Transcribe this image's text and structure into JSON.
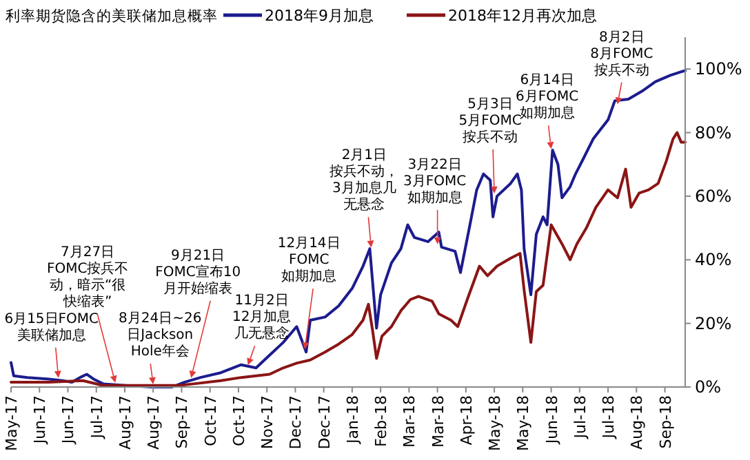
{
  "chart_data": {
    "type": "line",
    "title": "利率期货隐含的美联储加息概率",
    "legend": "top",
    "grid": false,
    "marker": "none",
    "line_style": "solid",
    "xlim": [
      "2017-05-11",
      "2018-09-21"
    ],
    "xticks": [
      {
        "value": "2017-05-11",
        "label": "May-17"
      },
      {
        "value": "2017-06-01",
        "label": "Jun-17"
      },
      {
        "value": "2017-06-22",
        "label": "Jun-17"
      },
      {
        "value": "2017-07-13",
        "label": "Jul-17"
      },
      {
        "value": "2017-08-03",
        "label": "Aug-17"
      },
      {
        "value": "2017-08-24",
        "label": "Aug-17"
      },
      {
        "value": "2017-09-14",
        "label": "Sep-17"
      },
      {
        "value": "2017-10-05",
        "label": "Oct-17"
      },
      {
        "value": "2017-10-26",
        "label": "Oct-17"
      },
      {
        "value": "2017-11-16",
        "label": "Nov-17"
      },
      {
        "value": "2017-12-07",
        "label": "Dec-17"
      },
      {
        "value": "2017-12-28",
        "label": "Dec-17"
      },
      {
        "value": "2018-01-18",
        "label": "Jan-18"
      },
      {
        "value": "2018-02-08",
        "label": "Feb-18"
      },
      {
        "value": "2018-03-01",
        "label": "Mar-18"
      },
      {
        "value": "2018-03-22",
        "label": "Mar-18"
      },
      {
        "value": "2018-04-12",
        "label": "Apr-18"
      },
      {
        "value": "2018-05-03",
        "label": "May-18"
      },
      {
        "value": "2018-05-24",
        "label": "May-18"
      },
      {
        "value": "2018-06-14",
        "label": "Jun-18"
      },
      {
        "value": "2018-07-05",
        "label": "Jul-18"
      },
      {
        "value": "2018-07-26",
        "label": "Jul-18"
      },
      {
        "value": "2018-08-16",
        "label": "Aug-18"
      },
      {
        "value": "2018-09-06",
        "label": "Sep-18"
      }
    ],
    "ylim": [
      0,
      110
    ],
    "yticks": [
      {
        "value": 0,
        "label": "0%"
      },
      {
        "value": 20,
        "label": "20%"
      },
      {
        "value": 40,
        "label": "40%"
      },
      {
        "value": 60,
        "label": "60%"
      },
      {
        "value": 80,
        "label": "80%"
      },
      {
        "value": 100,
        "label": "100%"
      }
    ],
    "series": [
      {
        "name": "2018年9月加息",
        "color": "#1c1c8e",
        "x": [
          "2017-05-11",
          "2017-05-13",
          "2017-05-23",
          "2017-06-08",
          "2017-06-18",
          "2017-06-25",
          "2017-07-01",
          "2017-07-06",
          "2017-07-11",
          "2017-07-18",
          "2017-08-03",
          "2017-08-23",
          "2017-09-07",
          "2017-09-16",
          "2017-09-28",
          "2017-10-13",
          "2017-10-28",
          "2017-11-08",
          "2017-11-18",
          "2017-11-28",
          "2017-12-08",
          "2017-12-15",
          "2017-12-18",
          "2017-12-29",
          "2018-01-08",
          "2018-01-18",
          "2018-01-26",
          "2018-01-31",
          "2018-02-05",
          "2018-02-08",
          "2018-02-16",
          "2018-02-23",
          "2018-02-28",
          "2018-03-05",
          "2018-03-15",
          "2018-03-23",
          "2018-03-25",
          "2018-04-04",
          "2018-04-08",
          "2018-04-15",
          "2018-04-20",
          "2018-04-25",
          "2018-04-30",
          "2018-05-02",
          "2018-05-05",
          "2018-05-15",
          "2018-05-20",
          "2018-05-23",
          "2018-05-25",
          "2018-05-30",
          "2018-06-03",
          "2018-06-08",
          "2018-06-11",
          "2018-06-15",
          "2018-06-19",
          "2018-06-22",
          "2018-06-28",
          "2018-07-02",
          "2018-07-08",
          "2018-07-15",
          "2018-07-26",
          "2018-07-31",
          "2018-08-10",
          "2018-08-20",
          "2018-08-30",
          "2018-09-10",
          "2018-09-17",
          "2018-09-21"
        ],
        "values": [
          7.7,
          3.5,
          3,
          2.5,
          2,
          1.5,
          3,
          4,
          2.5,
          1,
          0.5,
          0,
          0,
          1.5,
          3,
          4.5,
          7,
          6,
          10,
          14,
          19,
          11,
          21,
          22,
          25.5,
          31,
          38,
          43.5,
          18.5,
          29,
          39,
          43.5,
          51,
          47,
          45.7,
          48.7,
          44,
          42.7,
          36,
          51,
          62,
          67,
          65,
          53.5,
          60,
          64,
          67,
          62,
          43.5,
          29,
          48,
          53.5,
          51,
          74.5,
          70,
          59.5,
          63,
          67,
          72,
          78,
          84,
          90,
          90.5,
          93,
          96,
          98,
          99,
          99.5
        ]
      },
      {
        "name": "2018年12月再次加息",
        "color": "#8b1515",
        "x": [
          "2017-05-11",
          "2017-06-08",
          "2017-07-03",
          "2017-07-18",
          "2017-09-12",
          "2017-09-23",
          "2017-10-13",
          "2017-10-28",
          "2017-11-18",
          "2017-11-28",
          "2017-12-08",
          "2017-12-18",
          "2017-12-29",
          "2018-01-08",
          "2018-01-18",
          "2018-01-26",
          "2018-01-30",
          "2018-02-02",
          "2018-02-05",
          "2018-02-09",
          "2018-02-16",
          "2018-02-23",
          "2018-03-02",
          "2018-03-08",
          "2018-03-18",
          "2018-03-23",
          "2018-04-01",
          "2018-04-06",
          "2018-04-13",
          "2018-04-22",
          "2018-04-28",
          "2018-05-05",
          "2018-05-15",
          "2018-05-22",
          "2018-05-25",
          "2018-05-30",
          "2018-06-03",
          "2018-06-08",
          "2018-06-14",
          "2018-06-22",
          "2018-06-28",
          "2018-07-03",
          "2018-07-10",
          "2018-07-17",
          "2018-07-26",
          "2018-08-02",
          "2018-08-08",
          "2018-08-12",
          "2018-08-18",
          "2018-08-25",
          "2018-09-01",
          "2018-09-07",
          "2018-09-12",
          "2018-09-15",
          "2018-09-18",
          "2018-09-21"
        ],
        "values": [
          1.5,
          1.5,
          2,
          0.5,
          0.5,
          1,
          2,
          3,
          4,
          6,
          7.5,
          8.5,
          11,
          13.5,
          16.5,
          21,
          26,
          18,
          9,
          16,
          19,
          24,
          27.5,
          28.5,
          27,
          23,
          21,
          19,
          27.5,
          38,
          35,
          38,
          40.5,
          42,
          30.5,
          14,
          30,
          32,
          51,
          45,
          40,
          45,
          50,
          56.5,
          62,
          59.5,
          68.5,
          56.5,
          61,
          62,
          64,
          71,
          78,
          80,
          77,
          77
        ]
      }
    ],
    "annotations": [
      {
        "text": "6月15日FOMC美联储加息",
        "x": "2017-06-15",
        "y": 2
      },
      {
        "text": "7月27日FOMC按兵不动，暗示“很快缩表”",
        "x": "2017-07-27",
        "y": 0.5
      },
      {
        "text": "8月24日~26日Jackson Hole年会",
        "x": "2017-08-24",
        "y": 0
      },
      {
        "text": "9月21日FOMC宣布10月开始缩表",
        "x": "2017-09-21",
        "y": 2
      },
      {
        "text": "11月2日12月加息几无悬念",
        "x": "2017-11-02",
        "y": 6
      },
      {
        "text": "12月14日FOMC如期加息",
        "x": "2017-12-14",
        "y": 11
      },
      {
        "text": "2月1日按兵不动，3月加息几无悬念",
        "x": "2018-02-01",
        "y": 43
      },
      {
        "text": "3月22日3月FOMC如期加息",
        "x": "2018-03-22",
        "y": 44
      },
      {
        "text": "5月3日5月FOMC按兵不动",
        "x": "2018-05-03",
        "y": 60
      },
      {
        "text": "6月14日6月FOMC如期加息",
        "x": "2018-06-14",
        "y": 74
      },
      {
        "text": "8月2日8月FOMC按兵不动",
        "x": "2018-08-02",
        "y": 88
      }
    ]
  }
}
